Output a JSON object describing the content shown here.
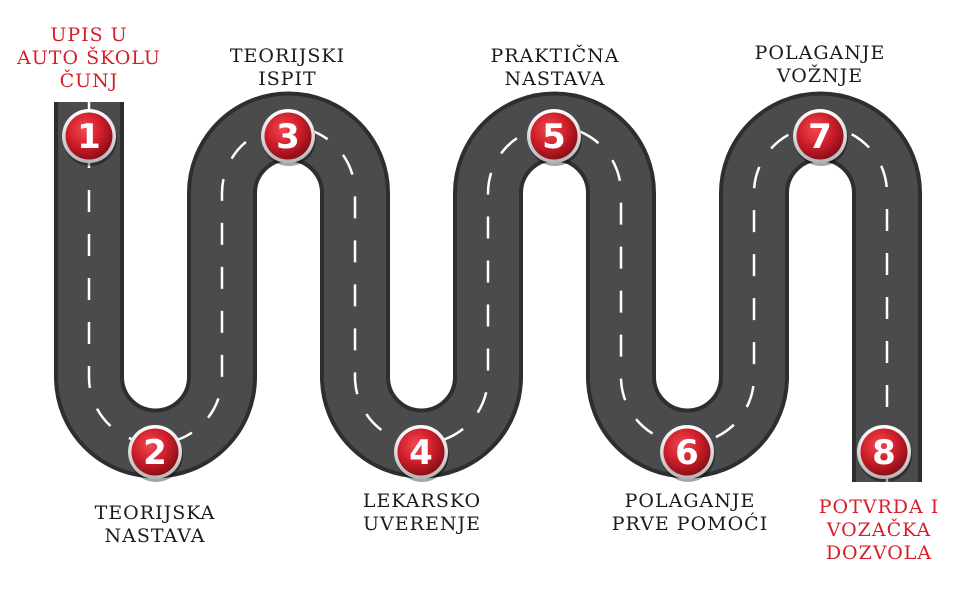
{
  "steps": [
    {
      "num": "1",
      "label": "UPIS U\nAUTO ŠKOLU\nČUNJ",
      "highlight": true
    },
    {
      "num": "2",
      "label": "TEORIJSKA\nNASTAVA",
      "highlight": false
    },
    {
      "num": "3",
      "label": "TEORIJSKI\nISPIT",
      "highlight": false
    },
    {
      "num": "4",
      "label": "LEKARSKO\nUVERENJE",
      "highlight": false
    },
    {
      "num": "5",
      "label": "PRAKTIČNA\nNASTAVA",
      "highlight": false
    },
    {
      "num": "6",
      "label": "POLAGANJE\nPRVE POMOĆI",
      "highlight": false
    },
    {
      "num": "7",
      "label": "POLAGANJE\nVOŽNJE",
      "highlight": false
    },
    {
      "num": "8",
      "label": "POTVRDA I\nVOZAČKA\nDOZVOLA",
      "highlight": true
    }
  ],
  "colors": {
    "road": "#4b4b4d",
    "road_edge": "#2e2e30",
    "lane": "#ffffff",
    "badge": "#d11f2b",
    "highlight_text": "#d81e2a"
  }
}
